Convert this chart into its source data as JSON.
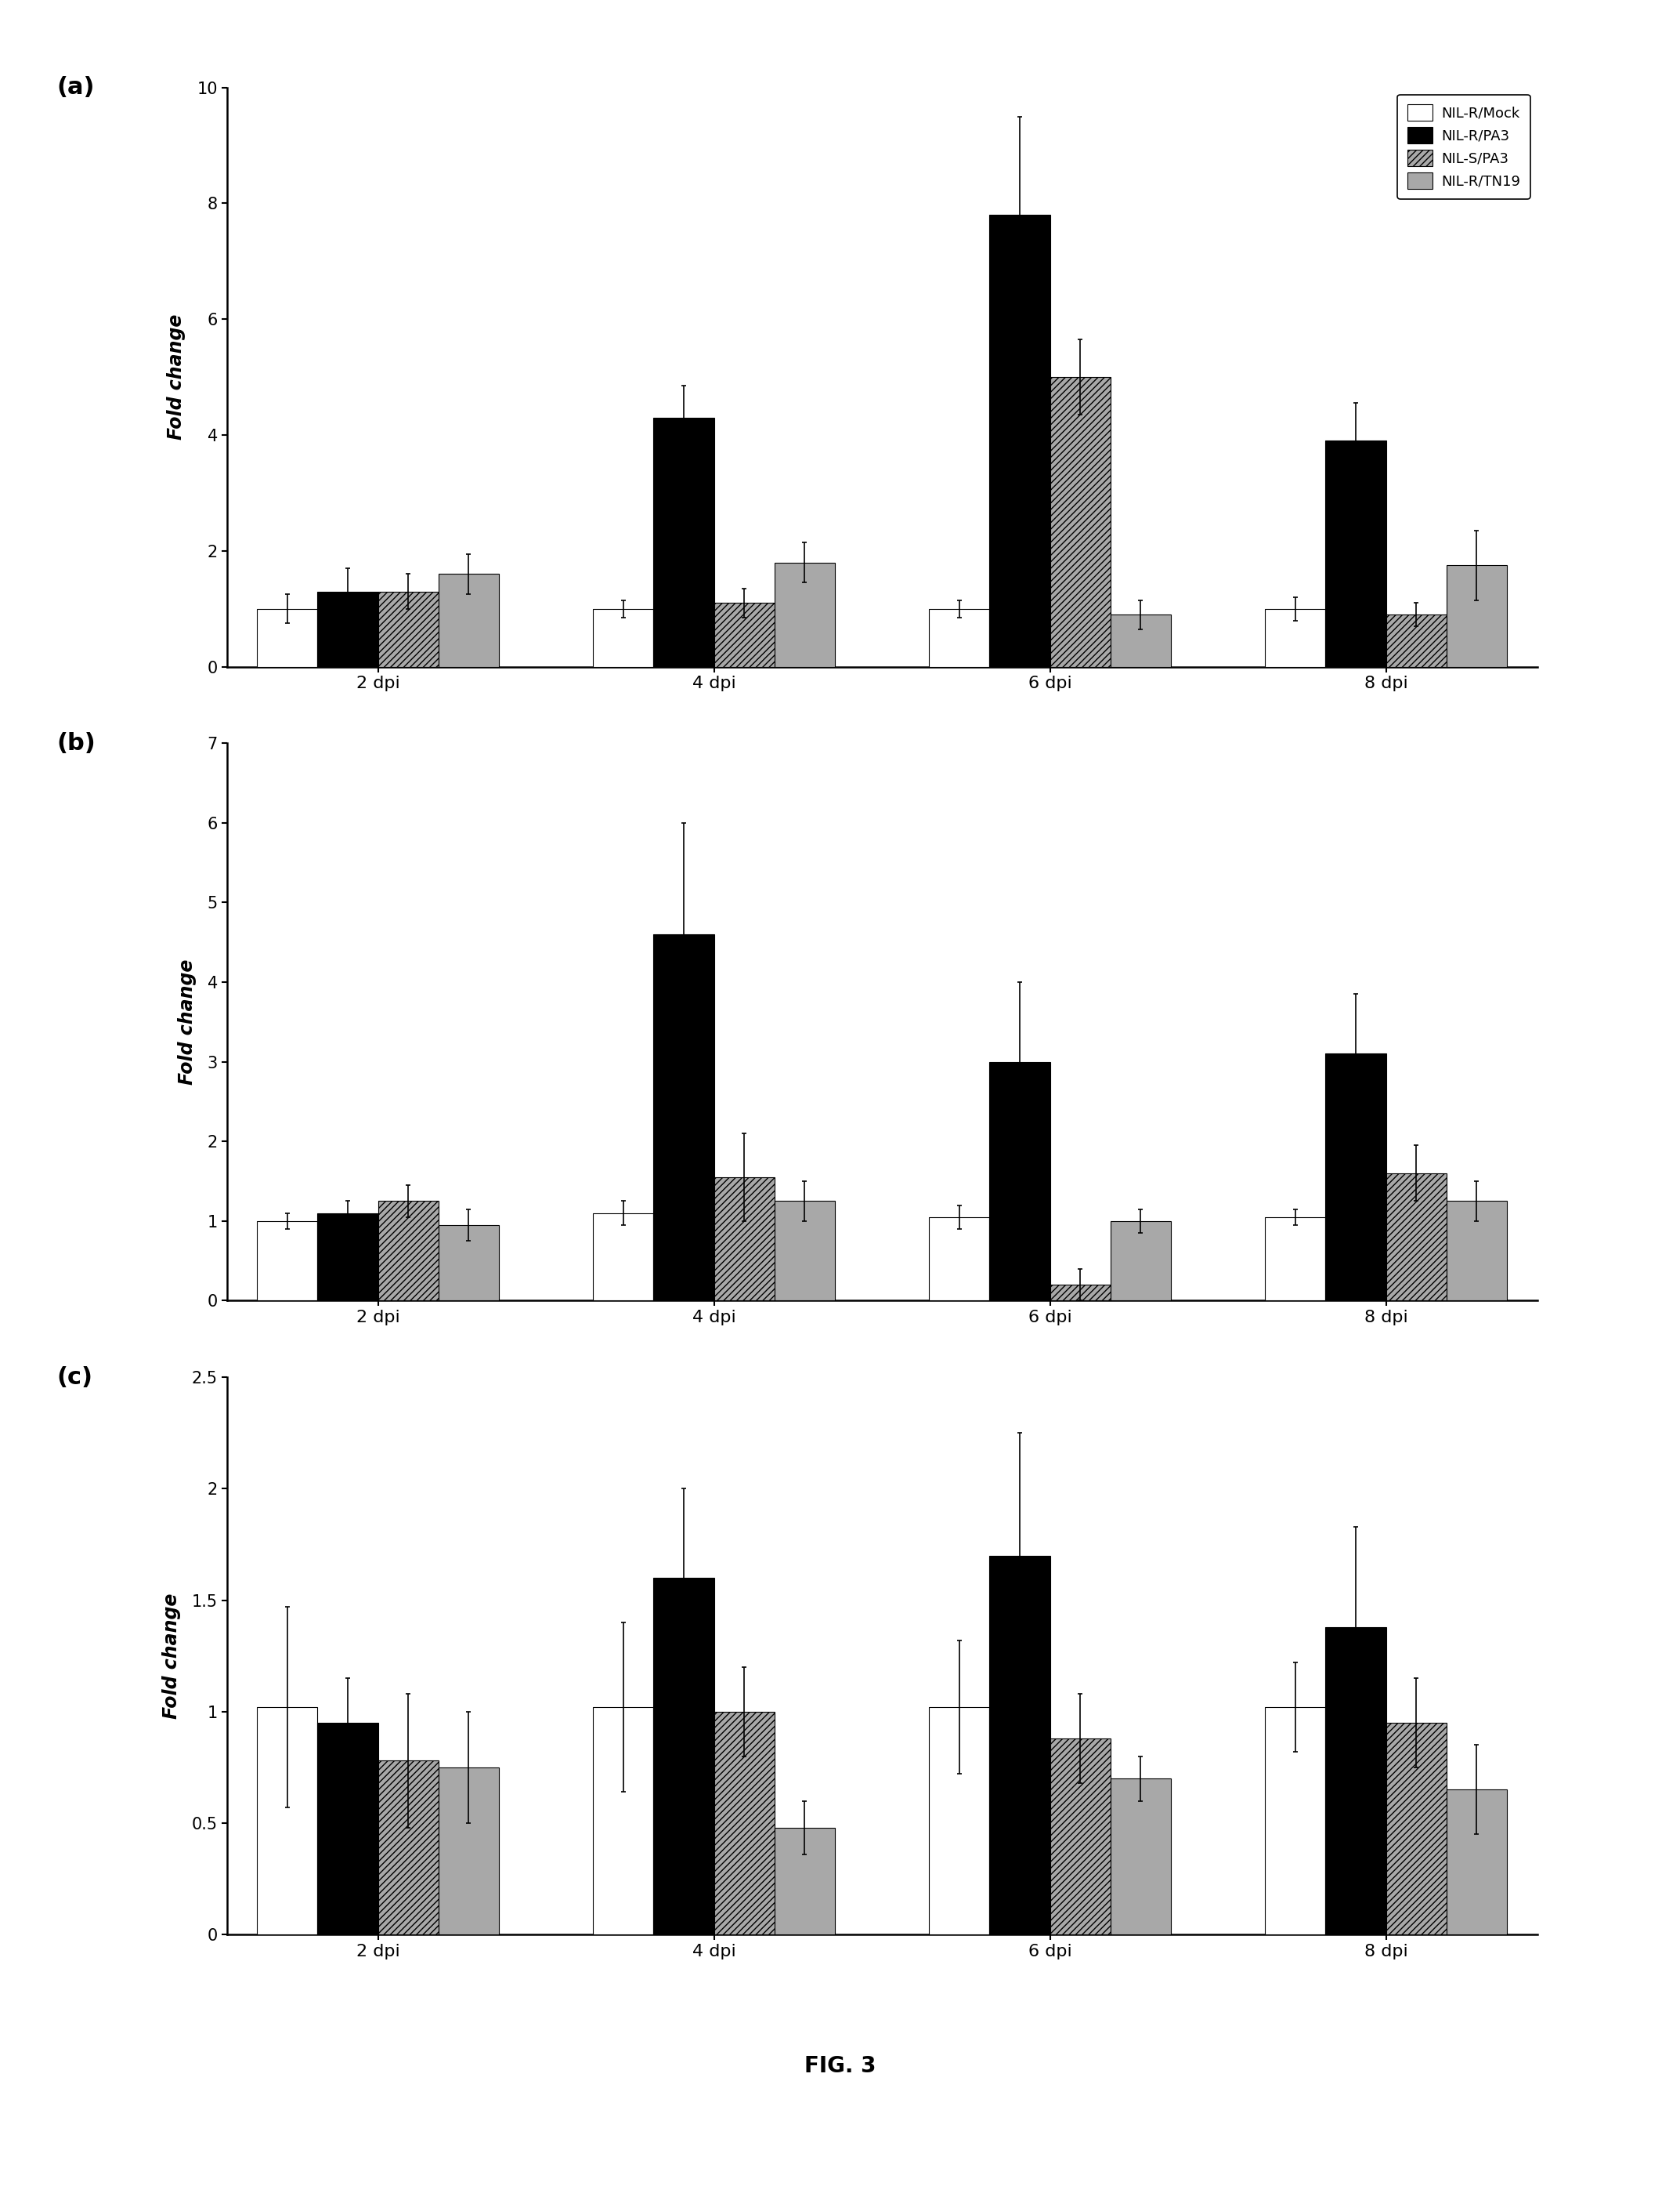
{
  "panel_a": {
    "ylim": [
      0,
      10
    ],
    "yticks": [
      0,
      2,
      4,
      6,
      8,
      10
    ],
    "ylabel": "Fold change",
    "groups": [
      "2 dpi",
      "4 dpi",
      "6 dpi",
      "8 dpi"
    ],
    "series": {
      "NIL-R/Mock": [
        1.0,
        1.0,
        1.0,
        1.0
      ],
      "NIL-R/PA3": [
        1.3,
        4.3,
        7.8,
        3.9
      ],
      "NIL-S/PA3": [
        1.3,
        1.1,
        5.0,
        0.9
      ],
      "NIL-R/TN19": [
        1.6,
        1.8,
        0.9,
        1.75
      ]
    },
    "errors": {
      "NIL-R/Mock": [
        0.25,
        0.15,
        0.15,
        0.2
      ],
      "NIL-R/PA3": [
        0.4,
        0.55,
        1.7,
        0.65
      ],
      "NIL-S/PA3": [
        0.3,
        0.25,
        0.65,
        0.2
      ],
      "NIL-R/TN19": [
        0.35,
        0.35,
        0.25,
        0.6
      ]
    }
  },
  "panel_b": {
    "ylim": [
      0,
      7
    ],
    "yticks": [
      0,
      1,
      2,
      3,
      4,
      5,
      6,
      7
    ],
    "ylabel": "Fold change",
    "groups": [
      "2 dpi",
      "4 dpi",
      "6 dpi",
      "8 dpi"
    ],
    "series": {
      "NIL-R/Mock": [
        1.0,
        1.1,
        1.05,
        1.05
      ],
      "NIL-R/PA3": [
        1.1,
        4.6,
        3.0,
        3.1
      ],
      "NIL-S/PA3": [
        1.25,
        1.55,
        0.2,
        1.6
      ],
      "NIL-R/TN19": [
        0.95,
        1.25,
        1.0,
        1.25
      ]
    },
    "errors": {
      "NIL-R/Mock": [
        0.1,
        0.15,
        0.15,
        0.1
      ],
      "NIL-R/PA3": [
        0.15,
        1.4,
        1.0,
        0.75
      ],
      "NIL-S/PA3": [
        0.2,
        0.55,
        0.2,
        0.35
      ],
      "NIL-R/TN19": [
        0.2,
        0.25,
        0.15,
        0.25
      ]
    }
  },
  "panel_c": {
    "ylim": [
      0,
      2.5
    ],
    "yticks": [
      0,
      0.5,
      1.0,
      1.5,
      2.0,
      2.5
    ],
    "ylabel": "Fold change",
    "groups": [
      "2 dpi",
      "4 dpi",
      "6 dpi",
      "8 dpi"
    ],
    "series": {
      "NIL-R/Mock": [
        1.02,
        1.02,
        1.02,
        1.02
      ],
      "NIL-R/PA3": [
        0.95,
        1.6,
        1.7,
        1.38
      ],
      "NIL-S/PA3": [
        0.78,
        1.0,
        0.88,
        0.95
      ],
      "NIL-R/TN19": [
        0.75,
        0.48,
        0.7,
        0.65
      ]
    },
    "errors": {
      "NIL-R/Mock": [
        0.45,
        0.38,
        0.3,
        0.2
      ],
      "NIL-R/PA3": [
        0.2,
        0.4,
        0.55,
        0.45
      ],
      "NIL-S/PA3": [
        0.3,
        0.2,
        0.2,
        0.2
      ],
      "NIL-R/TN19": [
        0.25,
        0.12,
        0.1,
        0.2
      ]
    }
  },
  "series_names": [
    "NIL-R/Mock",
    "NIL-R/PA3",
    "NIL-S/PA3",
    "NIL-R/TN19"
  ],
  "bar_colors": [
    "white",
    "black",
    "#a8a8a8",
    "#a8a8a8"
  ],
  "bar_hatches": [
    "",
    "",
    "////",
    "===="
  ],
  "bar_edgecolors": [
    "black",
    "black",
    "black",
    "black"
  ],
  "figure_title": "FIG. 3",
  "bar_width": 0.18
}
